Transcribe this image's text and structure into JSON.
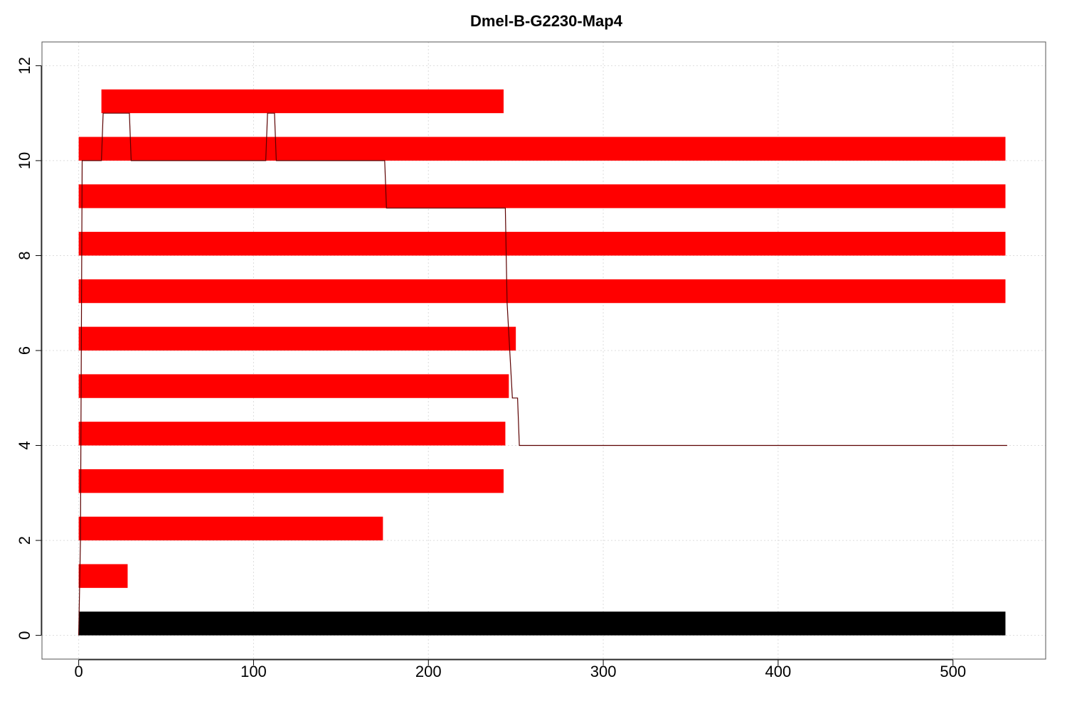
{
  "chart_data": {
    "type": "bar",
    "orientation": "horizontal",
    "title": "Dmel-B-G2230-Map4",
    "xlabel": "",
    "ylabel": "",
    "xlim": [
      -21,
      553
    ],
    "ylim": [
      -0.5,
      12.5
    ],
    "xticks": [
      0,
      100,
      200,
      300,
      400,
      500
    ],
    "yticks": [
      0,
      2,
      4,
      6,
      8,
      10,
      12
    ],
    "grid": true,
    "colors": {
      "reference_bar": "#000000",
      "read_bars": "#ff0000",
      "coverage_line": "#5c0000",
      "grid": "#dddddd",
      "frame": "#555555"
    },
    "reference_bar": {
      "start": 0,
      "end": 530,
      "ymin": 0,
      "ymax": 0.5
    },
    "bars": [
      {
        "start": 0,
        "end": 28,
        "ymin": 1,
        "ymax": 1.5
      },
      {
        "start": 0,
        "end": 174,
        "ymin": 2,
        "ymax": 2.5
      },
      {
        "start": 0,
        "end": 243,
        "ymin": 3,
        "ymax": 3.5
      },
      {
        "start": 0,
        "end": 244,
        "ymin": 4,
        "ymax": 4.5
      },
      {
        "start": 0,
        "end": 246,
        "ymin": 5,
        "ymax": 5.5
      },
      {
        "start": 0,
        "end": 250,
        "ymin": 6,
        "ymax": 6.5
      },
      {
        "start": 0,
        "end": 530,
        "ymin": 7,
        "ymax": 7.5
      },
      {
        "start": 0,
        "end": 530,
        "ymin": 8,
        "ymax": 8.5
      },
      {
        "start": 0,
        "end": 530,
        "ymin": 9,
        "ymax": 9.5
      },
      {
        "start": 0,
        "end": 530,
        "ymin": 10,
        "ymax": 10.5
      },
      {
        "start": 13,
        "end": 243,
        "ymin": 11,
        "ymax": 11.5
      }
    ],
    "coverage_line": {
      "x": [
        0,
        0.5,
        1,
        1.5,
        2,
        13,
        14,
        29,
        30,
        107,
        108,
        112,
        113,
        175,
        176,
        244,
        245,
        248,
        249,
        251,
        252,
        531
      ],
      "y": [
        0,
        1,
        2,
        6,
        10,
        10,
        11,
        11,
        10,
        10,
        11,
        11,
        10,
        10,
        9,
        9,
        7,
        5,
        5,
        5,
        4,
        4
      ]
    }
  }
}
